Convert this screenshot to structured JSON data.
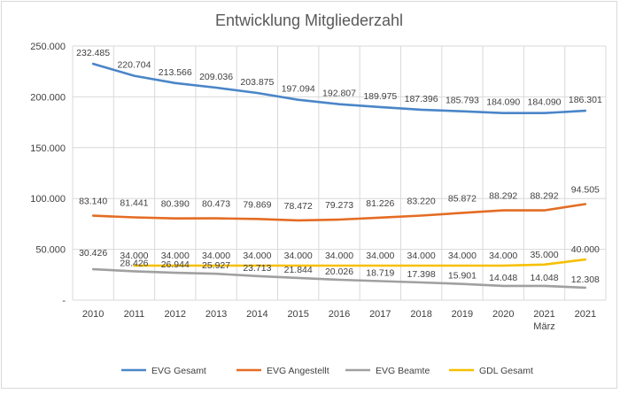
{
  "chart_data": {
    "type": "line",
    "title": "Entwicklung Mitgliederzahl",
    "categories": [
      "2010",
      "2011",
      "2012",
      "2013",
      "2014",
      "2015",
      "2016",
      "2017",
      "2018",
      "2019",
      "2020",
      "2021\nMärz",
      "2021"
    ],
    "ylim": [
      0,
      250000
    ],
    "yticks": [
      "-",
      "50.000",
      "100.000",
      "150.000",
      "200.000",
      "250.000"
    ],
    "grid": true,
    "legend_position": "bottom",
    "series": [
      {
        "name": "EVG Gesamt",
        "color": "#4a86c8",
        "values": [
          232485,
          220704,
          213566,
          209036,
          203875,
          197094,
          192807,
          189975,
          187396,
          185793,
          184090,
          184090,
          186301
        ],
        "labels": [
          "232.485",
          "220.704",
          "213.566",
          "209.036",
          "203.875",
          "197.094",
          "192.807",
          "189.975",
          "187.396",
          "185.793",
          "184.090",
          "184.090",
          "186.301"
        ]
      },
      {
        "name": "EVG Angestellt",
        "color": "#e46c23",
        "values": [
          83140,
          81441,
          80390,
          80473,
          79869,
          78472,
          79273,
          81226,
          83220,
          85872,
          88292,
          88292,
          94505
        ],
        "labels": [
          "83.140",
          "81.441",
          "80.390",
          "80.473",
          "79.869",
          "78.472",
          "79.273",
          "81.226",
          "83.220",
          "85.872",
          "88.292",
          "88.292",
          "94.505"
        ]
      },
      {
        "name": "EVG Beamte",
        "color": "#a0a0a0",
        "values": [
          30426,
          28426,
          26944,
          25927,
          23713,
          21844,
          20026,
          18719,
          17398,
          15901,
          14048,
          14048,
          12308
        ],
        "labels": [
          "30.426",
          "28.426",
          "26.944",
          "25.927",
          "23.713",
          "21.844",
          "20.026",
          "18.719",
          "17.398",
          "15.901",
          "14.048",
          "14.048",
          "12.308"
        ]
      },
      {
        "name": "GDL Gesamt",
        "color": "#f7bf00",
        "values": [
          null,
          34000,
          34000,
          34000,
          34000,
          34000,
          34000,
          34000,
          34000,
          34000,
          34000,
          35000,
          40000
        ],
        "labels": [
          null,
          "34.000",
          "34.000",
          "34.000",
          "34.000",
          "34.000",
          "34.000",
          "34.000",
          "34.000",
          "34.000",
          "34.000",
          "35.000",
          "40.000"
        ]
      }
    ]
  }
}
